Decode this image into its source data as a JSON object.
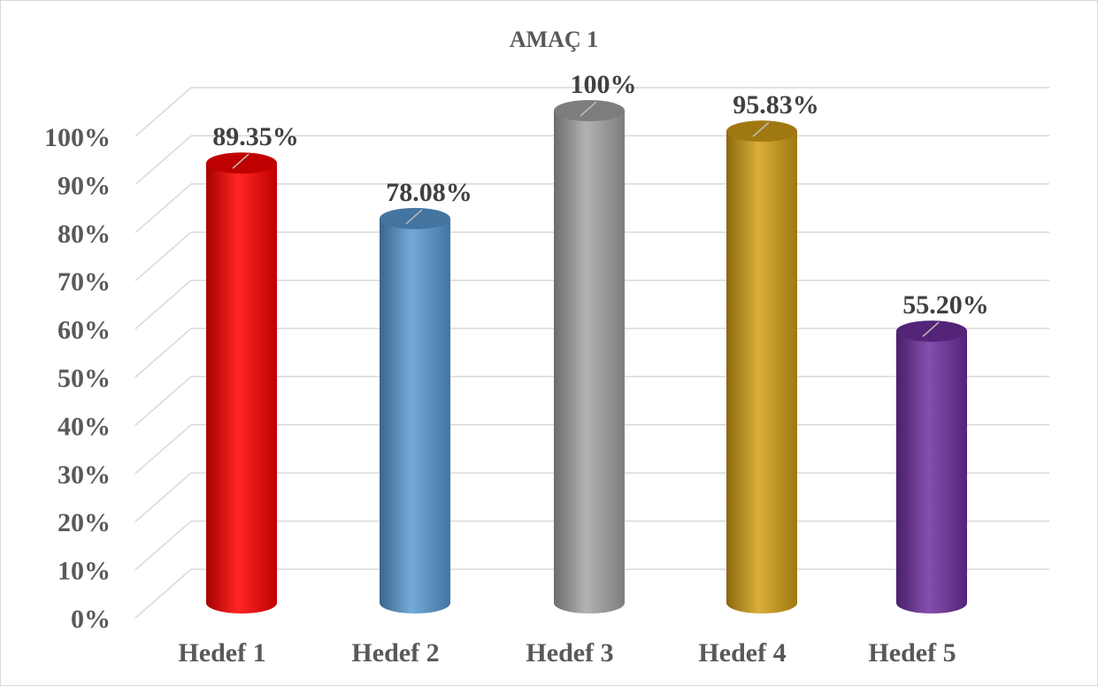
{
  "chart_data": {
    "type": "bar",
    "title": "AMAÇ 1",
    "categories": [
      "Hedef 1",
      "Hedef 2",
      "Hedef 3",
      "Hedef 4",
      "Hedef 5"
    ],
    "values": [
      89.35,
      78.08,
      100,
      95.83,
      55.2
    ],
    "data_labels": [
      "89.35%",
      "78.08%",
      "100%",
      "95.83%",
      "55.20%"
    ],
    "bar_colors": [
      "#ff0000",
      "#5b9bd5",
      "#a6a6a6",
      "#d4a017",
      "#7030a0"
    ],
    "ylim": [
      0,
      100
    ],
    "y_ticks": [
      "0%",
      "10%",
      "20%",
      "30%",
      "40%",
      "50%",
      "60%",
      "70%",
      "80%",
      "90%",
      "100%"
    ],
    "xlabel": "",
    "ylabel": "",
    "grid": true,
    "style": "3d-cylinder"
  }
}
